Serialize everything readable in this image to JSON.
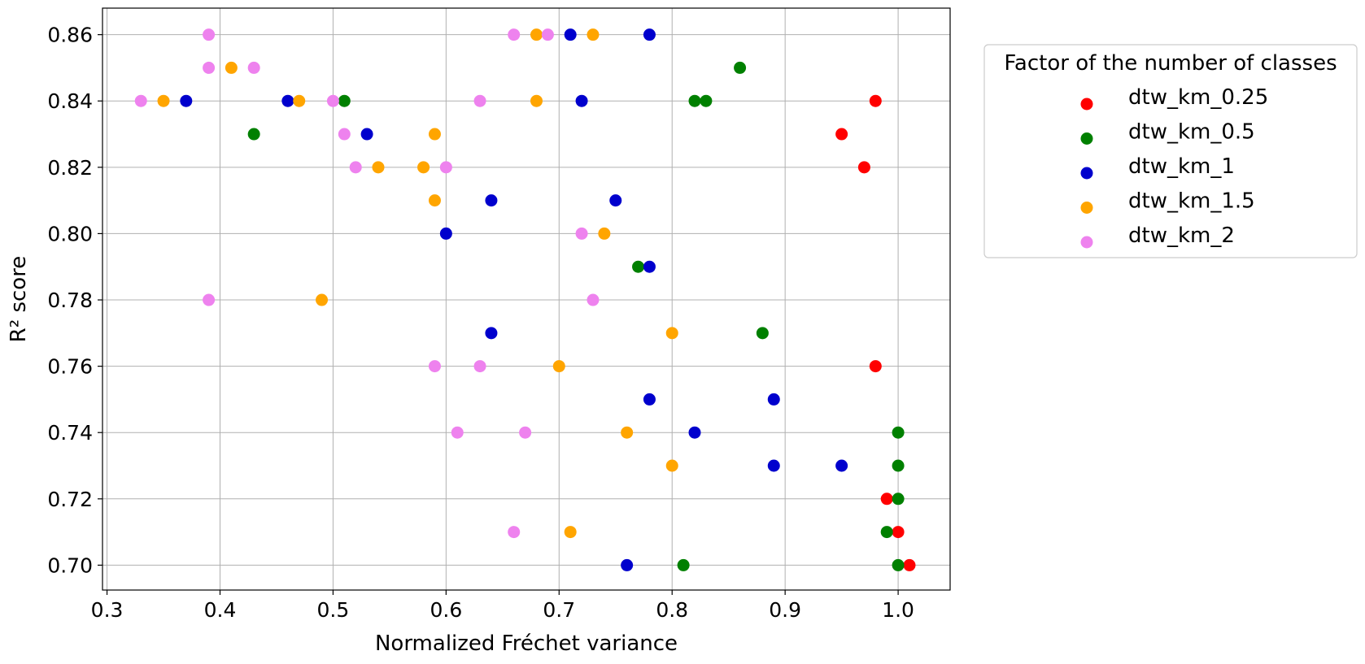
{
  "chart_data": {
    "type": "scatter",
    "xlabel": "Normalized Fréchet variance",
    "ylabel": "R² score",
    "xlim": [
      0.296,
      1.046
    ],
    "ylim": [
      0.6925,
      0.868
    ],
    "xticks": [
      0.3,
      0.4,
      0.5,
      0.6,
      0.7,
      0.8,
      0.9,
      1.0
    ],
    "xtick_labels": [
      "0.3",
      "0.4",
      "0.5",
      "0.6",
      "0.7",
      "0.8",
      "0.9",
      "1.0"
    ],
    "yticks": [
      0.7,
      0.72,
      0.74,
      0.76,
      0.78,
      0.8,
      0.82,
      0.84,
      0.86
    ],
    "ytick_labels": [
      "0.70",
      "0.72",
      "0.74",
      "0.76",
      "0.78",
      "0.80",
      "0.82",
      "0.84",
      "0.86"
    ],
    "grid": true,
    "legend": {
      "title": "Factor of the number of classes",
      "placement": "outside-right-top"
    },
    "series": [
      {
        "name": "dtw_km_0.25",
        "color": "#ff0000",
        "points": [
          [
            0.98,
            0.84
          ],
          [
            0.95,
            0.83
          ],
          [
            0.97,
            0.82
          ],
          [
            0.98,
            0.76
          ],
          [
            0.99,
            0.72
          ],
          [
            1.0,
            0.71
          ],
          [
            1.01,
            0.7
          ]
        ]
      },
      {
        "name": "dtw_km_0.5",
        "color": "#008000",
        "points": [
          [
            0.86,
            0.85
          ],
          [
            0.82,
            0.84
          ],
          [
            0.83,
            0.84
          ],
          [
            0.51,
            0.84
          ],
          [
            0.43,
            0.83
          ],
          [
            0.77,
            0.79
          ],
          [
            0.88,
            0.77
          ],
          [
            1.0,
            0.74
          ],
          [
            1.0,
            0.73
          ],
          [
            1.0,
            0.72
          ],
          [
            0.99,
            0.71
          ],
          [
            0.81,
            0.7
          ],
          [
            1.0,
            0.7
          ]
        ]
      },
      {
        "name": "dtw_km_1",
        "color": "#0000cd",
        "points": [
          [
            0.71,
            0.86
          ],
          [
            0.78,
            0.86
          ],
          [
            0.37,
            0.84
          ],
          [
            0.46,
            0.84
          ],
          [
            0.72,
            0.84
          ],
          [
            0.53,
            0.83
          ],
          [
            0.64,
            0.81
          ],
          [
            0.75,
            0.81
          ],
          [
            0.6,
            0.8
          ],
          [
            0.78,
            0.79
          ],
          [
            0.64,
            0.77
          ],
          [
            0.78,
            0.75
          ],
          [
            0.89,
            0.75
          ],
          [
            0.82,
            0.74
          ],
          [
            0.89,
            0.73
          ],
          [
            0.95,
            0.73
          ],
          [
            0.76,
            0.7
          ]
        ]
      },
      {
        "name": "dtw_km_1.5",
        "color": "#ffa500",
        "points": [
          [
            0.68,
            0.86
          ],
          [
            0.73,
            0.86
          ],
          [
            0.41,
            0.85
          ],
          [
            0.35,
            0.84
          ],
          [
            0.47,
            0.84
          ],
          [
            0.68,
            0.84
          ],
          [
            0.59,
            0.83
          ],
          [
            0.54,
            0.82
          ],
          [
            0.58,
            0.82
          ],
          [
            0.59,
            0.81
          ],
          [
            0.74,
            0.8
          ],
          [
            0.49,
            0.78
          ],
          [
            0.8,
            0.77
          ],
          [
            0.7,
            0.76
          ],
          [
            0.76,
            0.74
          ],
          [
            0.8,
            0.73
          ],
          [
            0.71,
            0.71
          ]
        ]
      },
      {
        "name": "dtw_km_2",
        "color": "#ee82ee",
        "points": [
          [
            0.39,
            0.86
          ],
          [
            0.66,
            0.86
          ],
          [
            0.69,
            0.86
          ],
          [
            0.39,
            0.85
          ],
          [
            0.43,
            0.85
          ],
          [
            0.33,
            0.84
          ],
          [
            0.5,
            0.84
          ],
          [
            0.63,
            0.84
          ],
          [
            0.51,
            0.83
          ],
          [
            0.52,
            0.82
          ],
          [
            0.6,
            0.82
          ],
          [
            0.72,
            0.8
          ],
          [
            0.39,
            0.78
          ],
          [
            0.73,
            0.78
          ],
          [
            0.59,
            0.76
          ],
          [
            0.63,
            0.76
          ],
          [
            0.61,
            0.74
          ],
          [
            0.67,
            0.74
          ],
          [
            0.66,
            0.71
          ]
        ]
      }
    ]
  }
}
